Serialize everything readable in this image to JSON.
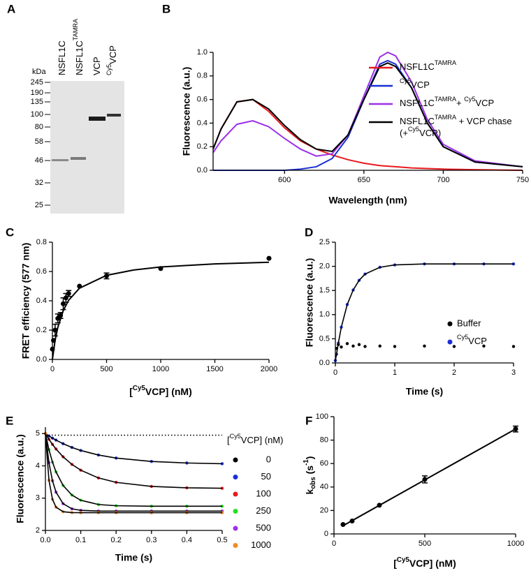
{
  "gel": {
    "panel": "A",
    "kda": "kDa",
    "lanes": [
      [
        "NSFL1C"
      ],
      [
        "NSFL1C",
        {
          "sup": "TAMRA"
        }
      ],
      [
        "VCP"
      ],
      [
        {
          "sup": "Cy5"
        },
        "VCP"
      ]
    ],
    "markers": [
      245,
      190,
      135,
      100,
      80,
      58,
      46,
      32,
      25
    ]
  },
  "chart_data": [
    {
      "panel": "B",
      "type": "line",
      "ylabel": "Fluorescence (a.u.)",
      "xlabel": "Wavelength (nm)",
      "xlim": [
        555,
        750
      ],
      "xticks": [
        600,
        650,
        700,
        750
      ],
      "ylim": [
        0,
        1
      ],
      "yticks": [
        {
          "value": 0,
          "label": "0.0"
        },
        0.2,
        0.4,
        0.6,
        0.8,
        {
          "value": 1,
          "label": "1.0"
        }
      ],
      "series": [
        {
          "name": [
            "NSFL1C",
            {
              "sup": "TAMRA"
            }
          ],
          "color": "#e8191e",
          "x": [
            555,
            560,
            570,
            580,
            590,
            600,
            610,
            620,
            630,
            640,
            650,
            660,
            665,
            670,
            680,
            690,
            700,
            720,
            750
          ],
          "values": [
            0.18,
            0.35,
            0.58,
            0.6,
            0.5,
            0.36,
            0.25,
            0.18,
            0.13,
            0.09,
            0.06,
            0.04,
            0.035,
            0.03,
            0.02,
            0.015,
            0.01,
            0.005,
            0
          ]
        },
        {
          "name": [
            {
              "sup": "Cy5"
            },
            "VCP"
          ],
          "color": "#1a2fd4",
          "x": [
            555,
            560,
            570,
            580,
            590,
            600,
            610,
            620,
            630,
            640,
            650,
            660,
            665,
            670,
            680,
            690,
            700,
            720,
            750
          ],
          "values": [
            0,
            0,
            0,
            0,
            0,
            0,
            0.01,
            0.03,
            0.1,
            0.28,
            0.6,
            0.9,
            0.93,
            0.9,
            0.7,
            0.4,
            0.2,
            0.07,
            0.03
          ]
        },
        {
          "name": [
            "NSFL1C",
            {
              "sup": "TAMRA"
            },
            "+ ",
            {
              "sup": "Cy5"
            },
            "VCP"
          ],
          "color": "#9b30e8",
          "x": [
            555,
            560,
            570,
            580,
            590,
            600,
            610,
            620,
            630,
            640,
            650,
            660,
            665,
            670,
            680,
            690,
            700,
            720,
            750
          ],
          "values": [
            0.15,
            0.25,
            0.39,
            0.42,
            0.37,
            0.27,
            0.18,
            0.12,
            0.14,
            0.3,
            0.63,
            0.96,
            1,
            0.97,
            0.75,
            0.43,
            0.22,
            0.08,
            0.03
          ]
        },
        {
          "name": [
            [
              "NSFL1C",
              {
                "sup": "TAMRA"
              },
              " + VCP chase"
            ],
            [
              "(+",
              {
                "sup": "Cy5"
              },
              "VCP)"
            ]
          ],
          "color": "#000000",
          "x": [
            555,
            560,
            570,
            580,
            590,
            600,
            610,
            620,
            630,
            640,
            650,
            660,
            665,
            670,
            680,
            690,
            700,
            720,
            750
          ],
          "values": [
            0.18,
            0.35,
            0.58,
            0.6,
            0.52,
            0.38,
            0.26,
            0.18,
            0.16,
            0.3,
            0.6,
            0.88,
            0.91,
            0.88,
            0.7,
            0.4,
            0.2,
            0.07,
            0.03
          ]
        }
      ]
    },
    {
      "panel": "C",
      "type": "scatter",
      "ylabel": "FRET efficiency (577 nm)",
      "xlabel": [
        "[",
        {
          "sup": "Cy5"
        },
        "VCP] (nM)"
      ],
      "xlim": [
        0,
        2000
      ],
      "xticks": [
        0,
        500,
        1000,
        1500,
        2000
      ],
      "ylim": [
        0,
        0.8
      ],
      "yticks": [
        {
          "value": 0,
          "label": "0.0"
        },
        0.2,
        0.4,
        0.6,
        0.8
      ],
      "series": [
        {
          "color": "#000000",
          "x": [
            0,
            10,
            25,
            50,
            75,
            100,
            125,
            150,
            250,
            500,
            1000,
            2000
          ],
          "values": [
            0.07,
            0.13,
            0.2,
            0.28,
            0.3,
            0.38,
            0.42,
            0.45,
            0.5,
            0.57,
            0.62,
            0.69
          ],
          "errors": [
            0,
            0,
            0.04,
            0.03,
            0.02,
            0.04,
            0.03,
            0.02,
            0,
            0.02,
            0,
            0
          ]
        },
        {
          "color": "#000000",
          "mode": "line",
          "x": [
            0,
            25,
            50,
            100,
            150,
            250,
            500,
            750,
            1000,
            1500,
            2000
          ],
          "values": [
            0,
            0.13,
            0.219,
            0.333,
            0.404,
            0.486,
            0.574,
            0.61,
            0.631,
            0.652,
            0.663
          ]
        }
      ]
    },
    {
      "panel": "D",
      "type": "scatter",
      "ylabel": "Fluorescence (a.u.)",
      "xlabel": "Time (s)",
      "xlim": [
        0,
        3
      ],
      "xticks": [
        0,
        1,
        2,
        3
      ],
      "ylim": [
        0,
        2.5
      ],
      "yticks": [
        {
          "value": 0,
          "label": "0.0"
        },
        0.5,
        {
          "value": 1,
          "label": "1.0"
        },
        1.5,
        {
          "value": 2,
          "label": "2.0"
        },
        2.5
      ],
      "series": [
        {
          "name": "Buffer",
          "color": "#000000",
          "x": [
            0,
            0.02,
            0.05,
            0.1,
            0.2,
            0.3,
            0.4,
            0.5,
            0.75,
            1,
            1.5,
            2,
            2.5,
            3
          ],
          "values": [
            0.05,
            0.3,
            0.38,
            0.33,
            0.4,
            0.35,
            0.38,
            0.34,
            0.35,
            0.34,
            0.35,
            0.34,
            0.35,
            0.34
          ]
        },
        {
          "name": [
            {
              "sup": "Cy5"
            },
            "VCP"
          ],
          "color": "#1a2fd4",
          "line_color": "#000000",
          "mode": "lines+markers",
          "x": [
            0,
            0.02,
            0.05,
            0.1,
            0.2,
            0.3,
            0.4,
            0.5,
            0.75,
            1,
            1.5,
            2,
            2.5,
            3
          ],
          "values": [
            0.05,
            0.18,
            0.41,
            0.74,
            1.21,
            1.51,
            1.71,
            1.84,
            1.98,
            2.03,
            2.05,
            2.05,
            2.05,
            2.05
          ]
        }
      ]
    },
    {
      "panel": "E",
      "type": "scatter",
      "ylabel": "Fluorescence (a.u.)",
      "xlabel": "Time (s)",
      "legend_title": [
        "[",
        {
          "sup": "Cy5"
        },
        "VCP] (nM)"
      ],
      "xlim": [
        0,
        0.5
      ],
      "xticks": [
        {
          "value": 0,
          "label": "0.0"
        },
        0.1,
        0.2,
        0.3,
        0.4,
        0.5
      ],
      "ylim": [
        2,
        5.2
      ],
      "yticks": [
        2,
        3,
        4,
        5
      ],
      "series": [
        {
          "name": "0",
          "color": "#000000",
          "mode": "line",
          "dash": true,
          "x": [
            0,
            0.1,
            0.2,
            0.3,
            0.4,
            0.5
          ],
          "values": [
            4.95,
            4.95,
            4.95,
            4.95,
            4.95,
            4.95
          ]
        },
        {
          "name": "50",
          "color": "#1a2fd4",
          "line_color": "#000000",
          "mode": "lines+markers",
          "x": [
            0,
            0.01,
            0.02,
            0.03,
            0.05,
            0.075,
            0.1,
            0.15,
            0.2,
            0.3,
            0.4,
            0.5
          ],
          "values": [
            5,
            4.927,
            4.859,
            4.798,
            4.687,
            4.571,
            4.477,
            4.336,
            4.242,
            4.136,
            4.089,
            4.067
          ]
        },
        {
          "name": "100",
          "color": "#e8191e",
          "line_color": "#000000",
          "mode": "lines+markers",
          "x": [
            0,
            0.01,
            0.02,
            0.03,
            0.05,
            0.075,
            0.1,
            0.15,
            0.2,
            0.3,
            0.4,
            0.5
          ],
          "values": [
            5,
            4.823,
            4.665,
            4.522,
            4.281,
            4.045,
            3.866,
            3.626,
            3.489,
            3.363,
            3.321,
            3.307
          ]
        },
        {
          "name": "250",
          "color": "#22e022",
          "line_color": "#000000",
          "mode": "lines+markers",
          "x": [
            0,
            0.01,
            0.02,
            0.03,
            0.05,
            0.075,
            0.1,
            0.15,
            0.2,
            0.3,
            0.4,
            0.5
          ],
          "values": [
            5,
            4.502,
            4.115,
            3.813,
            3.395,
            3.095,
            2.935,
            2.803,
            2.765,
            2.751,
            2.75,
            2.75
          ]
        },
        {
          "name": "500",
          "color": "#9b30e8",
          "line_color": "#000000",
          "mode": "lines+markers",
          "x": [
            0,
            0.01,
            0.02,
            0.03,
            0.05,
            0.075,
            0.1,
            0.15,
            0.2,
            0.3,
            0.4,
            0.5
          ],
          "values": [
            5,
            4.1,
            3.538,
            3.186,
            2.829,
            2.67,
            2.622,
            2.602,
            2.6,
            2.6,
            2.6,
            2.6
          ]
        },
        {
          "name": "1000",
          "color": "#f08a24",
          "line_color": "#000000",
          "mode": "lines+markers",
          "x": [
            0,
            0.01,
            0.02,
            0.03,
            0.05,
            0.075,
            0.1,
            0.15,
            0.2,
            0.3,
            0.4,
            0.5
          ],
          "values": [
            5,
            3.556,
            2.963,
            2.72,
            2.579,
            2.553,
            2.55,
            2.55,
            2.55,
            2.55,
            2.55,
            2.55
          ]
        }
      ]
    },
    {
      "panel": "F",
      "type": "scatter",
      "ylabel": [
        "k",
        {
          "sub": "obs"
        },
        " (s",
        {
          "sup": "-1"
        },
        ")"
      ],
      "xlabel": [
        "[",
        {
          "sup": "Cy5"
        },
        "VCP] (nM)"
      ],
      "xlim": [
        0,
        1000
      ],
      "xticks": [
        0,
        500,
        1000
      ],
      "ylim": [
        0,
        100
      ],
      "yticks": [
        0,
        20,
        40,
        60,
        80,
        100
      ],
      "series": [
        {
          "color": "#000000",
          "x": [
            50,
            100,
            250,
            500,
            1000
          ],
          "values": [
            8,
            11,
            24.5,
            46.5,
            89.5
          ],
          "errors": [
            0,
            0,
            0,
            3,
            2.5
          ]
        },
        {
          "color": "#000000",
          "mode": "line",
          "x": [
            50,
            1000
          ],
          "values": [
            7,
            89.5
          ]
        }
      ]
    }
  ]
}
